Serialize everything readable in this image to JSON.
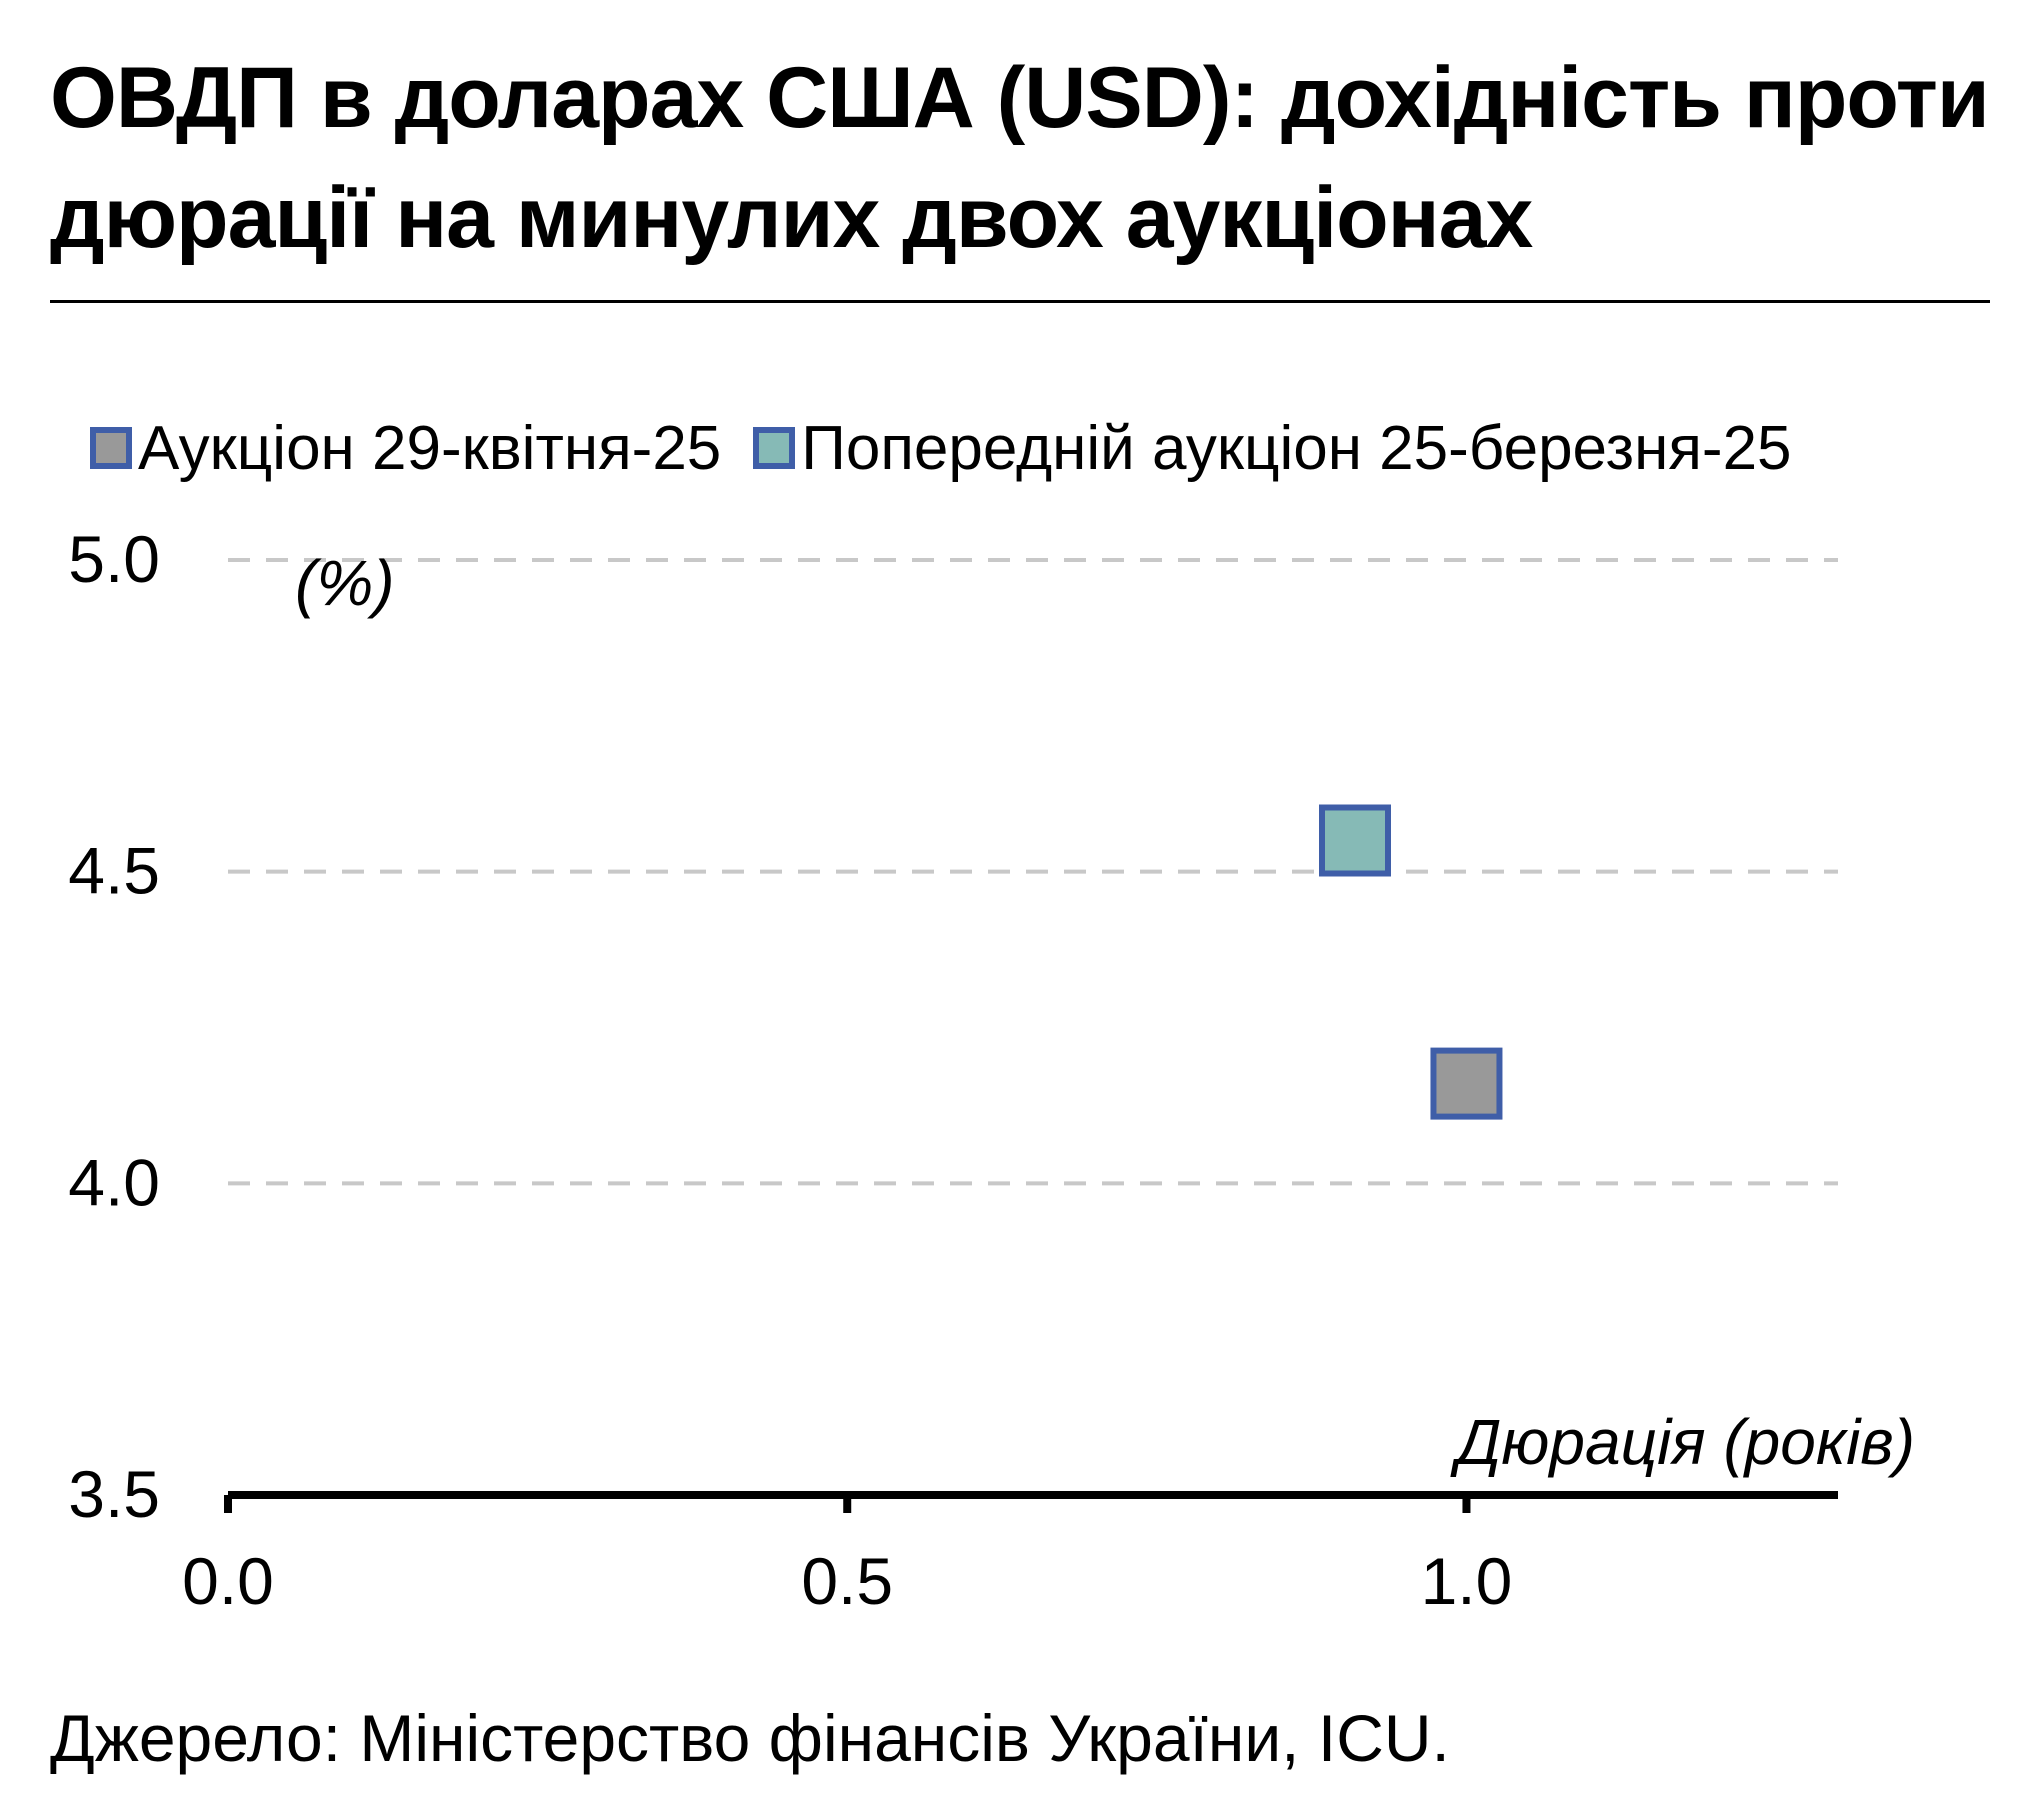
{
  "title": "ОВДП в доларах США (USD): дохідність проти дюрації на минулих двох аукціонах",
  "source": "Джерело: Міністерство фінансів України, ICU.",
  "chart_data": {
    "type": "scatter",
    "ylabel": "(%)",
    "xlabel": "Дюрація (років)",
    "xlim": [
      0,
      1.3
    ],
    "ylim": [
      3.5,
      5.0
    ],
    "x_ticks": [
      "0.0",
      "0.5",
      "1.0"
    ],
    "y_ticks": [
      "5.0",
      "4.5",
      "4.0",
      "3.5"
    ],
    "grid": "horizontal dashed",
    "legend": "top",
    "series": [
      {
        "name": "Аукціон 29-квітня-25",
        "color": "#999999",
        "border": "#3f5ea8",
        "points": [
          {
            "x": 1.0,
            "y": 4.16
          }
        ]
      },
      {
        "name": "Попередній аукціон 25-березня-25",
        "color": "#86bab6",
        "border": "#3f5ea8",
        "points": [
          {
            "x": 0.91,
            "y": 4.55
          }
        ]
      }
    ]
  }
}
